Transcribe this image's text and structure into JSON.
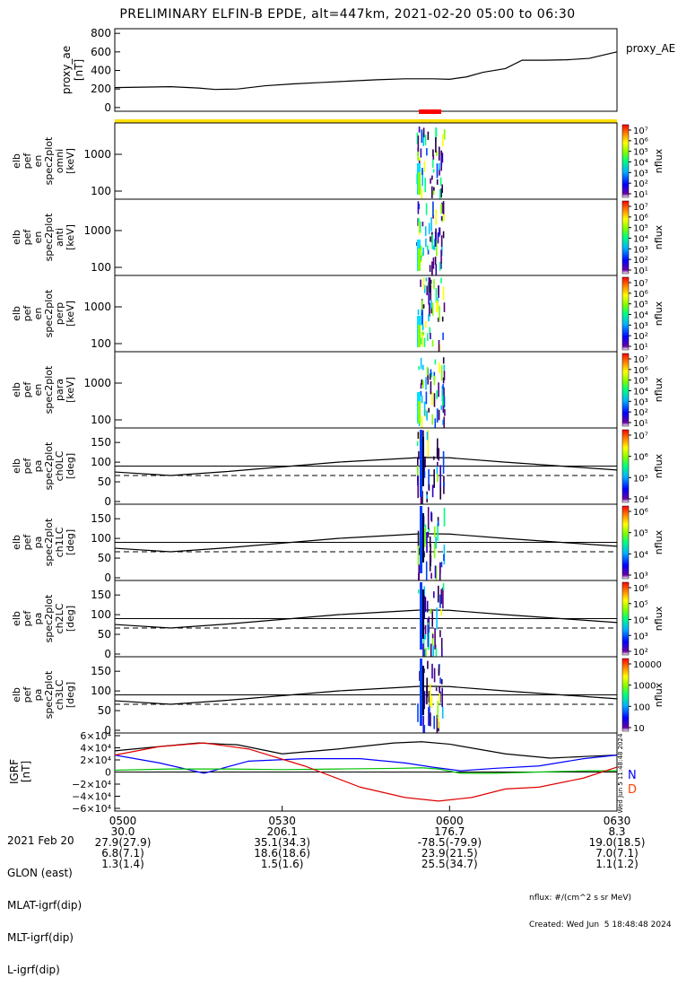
{
  "title": "PRELIMINARY ELFIN-B EPDE, alt=447km, 2021-02-20 05:00 to 06:30",
  "colors": {
    "yellow_bar": "#ffe000",
    "red_bar": "#ff0000",
    "bx": "#0000ff",
    "by": "#00c000",
    "bz": "#e00000",
    "btot": "#000000"
  },
  "chart_data": [
    {
      "type": "line",
      "panel": "proxy_ae",
      "ylabel": "proxy_ae\n[nT]",
      "legend": "proxy_AE",
      "yticks": [
        "800",
        "600",
        "400",
        "200",
        "0"
      ],
      "ylim": [
        -40,
        850
      ],
      "x": [
        "05:00",
        "05:05",
        "05:10",
        "05:15",
        "05:18",
        "05:22",
        "05:27",
        "05:32",
        "05:37",
        "05:42",
        "05:47",
        "05:52",
        "05:57",
        "06:00",
        "06:03",
        "06:06",
        "06:10",
        "06:13",
        "06:17",
        "06:21",
        "06:25",
        "06:30"
      ],
      "values": [
        215,
        220,
        225,
        210,
        195,
        200,
        235,
        255,
        270,
        285,
        300,
        310,
        310,
        305,
        330,
        380,
        420,
        510,
        510,
        515,
        530,
        600
      ]
    },
    {
      "type": "heatmap",
      "panel": "spec_omni",
      "ylabel": "elb\npef\nen\nspec2plot\nomni\n[keV]",
      "yticks": [
        "1000",
        "100"
      ],
      "colorbar_label": "nflux",
      "colorbar_ticks": [
        "10⁷",
        "10⁶",
        "10⁵",
        "10⁴",
        "10³",
        "10²",
        "10¹"
      ]
    },
    {
      "type": "heatmap",
      "panel": "spec_anti",
      "ylabel": "elb\npef\nen\nspec2plot\nanti\n[keV]",
      "yticks": [
        "1000",
        "100"
      ],
      "colorbar_label": "nflux",
      "colorbar_ticks": [
        "10⁷",
        "10⁶",
        "10⁵",
        "10⁴",
        "10³",
        "10²",
        "10¹"
      ]
    },
    {
      "type": "heatmap",
      "panel": "spec_perp",
      "ylabel": "elb\npef\nen\nspec2plot\nperp\n[keV]",
      "yticks": [
        "1000",
        "100"
      ],
      "colorbar_label": "nflux",
      "colorbar_ticks": [
        "10⁷",
        "10⁶",
        "10⁵",
        "10⁴",
        "10³",
        "10²",
        "10¹"
      ]
    },
    {
      "type": "heatmap",
      "panel": "spec_para",
      "ylabel": "elb\npef\nen\nspec2plot\npara\n[keV]",
      "yticks": [
        "1000",
        "100"
      ],
      "colorbar_label": "nflux",
      "colorbar_ticks": [
        "10⁷",
        "10⁶",
        "10⁵",
        "10⁴",
        "10³",
        "10²",
        "10¹"
      ]
    },
    {
      "type": "heatmap",
      "panel": "ch0LC",
      "ylabel": "elb\npef\npa\nspec2plot\nch0LC\n[deg]",
      "yticks": [
        "150",
        "100",
        "50",
        "0"
      ],
      "ylim": [
        0,
        180
      ],
      "colorbar_label": "nflux",
      "colorbar_ticks": [
        "10⁷",
        "10⁶",
        "10⁵",
        "10⁴"
      ]
    },
    {
      "type": "heatmap",
      "panel": "ch1LC",
      "ylabel": "elb\npef\npa\nspec2plot\nch1LC\n[deg]",
      "yticks": [
        "150",
        "100",
        "50",
        "0"
      ],
      "ylim": [
        0,
        180
      ],
      "colorbar_label": "nflux",
      "colorbar_ticks": [
        "10⁶",
        "10⁵",
        "10⁴",
        "10³"
      ]
    },
    {
      "type": "heatmap",
      "panel": "ch2LC",
      "ylabel": "elb\npef\npa\nspec2plot\nch2LC\n[deg]",
      "yticks": [
        "150",
        "100",
        "50",
        "0"
      ],
      "ylim": [
        0,
        180
      ],
      "colorbar_label": "nflux",
      "colorbar_ticks": [
        "10⁶",
        "10⁵",
        "10⁴",
        "10³",
        "10²"
      ]
    },
    {
      "type": "heatmap",
      "panel": "ch3LC",
      "ylabel": "elb\npef\npa\nspec2plot\nch3LC\n[deg]",
      "yticks": [
        "150",
        "100",
        "50",
        "0"
      ],
      "ylim": [
        0,
        180
      ],
      "colorbar_label": "nflux",
      "colorbar_ticks": [
        "10000",
        "1000",
        "100",
        "10"
      ]
    },
    {
      "type": "line",
      "panel": "igrf",
      "ylabel": "IGRF\n[nT]",
      "yticks": [
        "6×10⁴",
        "4×10⁴",
        "2×10⁴",
        "0",
        "−2×10⁴",
        "−4×10⁴",
        "−6×10⁴"
      ],
      "ylim": [
        -60000,
        60000
      ],
      "legend": [
        "N",
        "D"
      ]
    }
  ],
  "footer": {
    "rows": [
      {
        "label": "2021 Feb 20",
        "values": [
          "0500",
          "0530",
          "0600",
          "0630"
        ]
      },
      {
        "label": "GLON (east)",
        "values": [
          "30.0",
          "206.1",
          "176.7",
          "8.3"
        ]
      },
      {
        "label": "MLAT-igrf(dip)",
        "values": [
          "27.9(27.9)",
          "35.1(34.3)",
          "-78.5(-79.9)",
          "19.0(18.5)"
        ]
      },
      {
        "label": "MLT-igrf(dip)",
        "values": [
          "6.8(7.1)",
          "18.6(18.6)",
          "23.9(21.5)",
          "7.0(7.1)"
        ]
      },
      {
        "label": "L-igrf(dip)",
        "values": [
          "1.3(1.4)",
          "1.5(1.6)",
          "25.5(34.7)",
          "1.1(1.2)"
        ]
      }
    ],
    "note1": "nflux: #/(cm^2 s sr MeV)",
    "note2": "Created: Wed Jun  5 18:48:48 2024",
    "vertical_stamp": "Wed Jun  5 11:48:48 2024"
  }
}
